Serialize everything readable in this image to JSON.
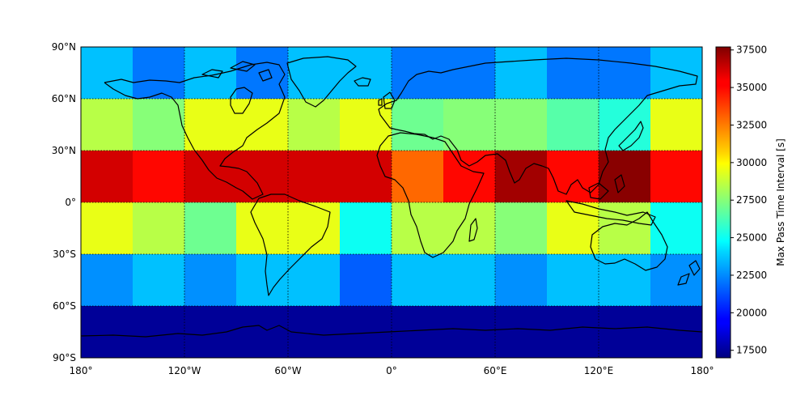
{
  "chart_data": {
    "type": "heatmap",
    "projection": "equirectangular",
    "grid": true,
    "x_ticks": [
      "180°",
      "120°W",
      "60°W",
      "0°",
      "60°E",
      "120°E",
      "180°"
    ],
    "y_ticks": [
      "90°N",
      "60°N",
      "30°N",
      "0°",
      "30°S",
      "60°S",
      "90°S"
    ],
    "lon_edges": [
      -180,
      -150,
      -120,
      -90,
      -60,
      -30,
      0,
      30,
      60,
      90,
      120,
      150,
      180
    ],
    "lat_edges": [
      90,
      60,
      30,
      0,
      -30,
      -60,
      -90
    ],
    "values": [
      [
        23500,
        22000,
        23500,
        22000,
        23500,
        23500,
        22000,
        22000,
        23500,
        22000,
        22000,
        23500
      ],
      [
        28500,
        27500,
        29500,
        29500,
        28500,
        29500,
        27000,
        27500,
        27500,
        26500,
        25500,
        29500
      ],
      [
        36000,
        35000,
        36000,
        36000,
        36000,
        36000,
        33000,
        35000,
        37000,
        35000,
        37500,
        35000
      ],
      [
        29500,
        28500,
        27000,
        29500,
        29500,
        25000,
        28500,
        28500,
        27500,
        29500,
        28500,
        25000
      ],
      [
        22500,
        23500,
        22500,
        23500,
        23500,
        21500,
        23500,
        23500,
        22500,
        23500,
        23500,
        22500
      ],
      [
        17500,
        17500,
        17500,
        17500,
        17500,
        17500,
        17500,
        17500,
        17500,
        17500,
        17500,
        17500
      ]
    ],
    "colorbar": {
      "label": "Max Pass Time Interval [s]",
      "min": 17000,
      "max": 37700,
      "colormap": "jet",
      "ticks": [
        17500,
        20000,
        22500,
        25000,
        27500,
        30000,
        32500,
        35000,
        37500
      ]
    },
    "tick_labels": [
      "17500",
      "20000",
      "22500",
      "25000",
      "27500",
      "30000",
      "32500",
      "35000",
      "37500"
    ]
  }
}
